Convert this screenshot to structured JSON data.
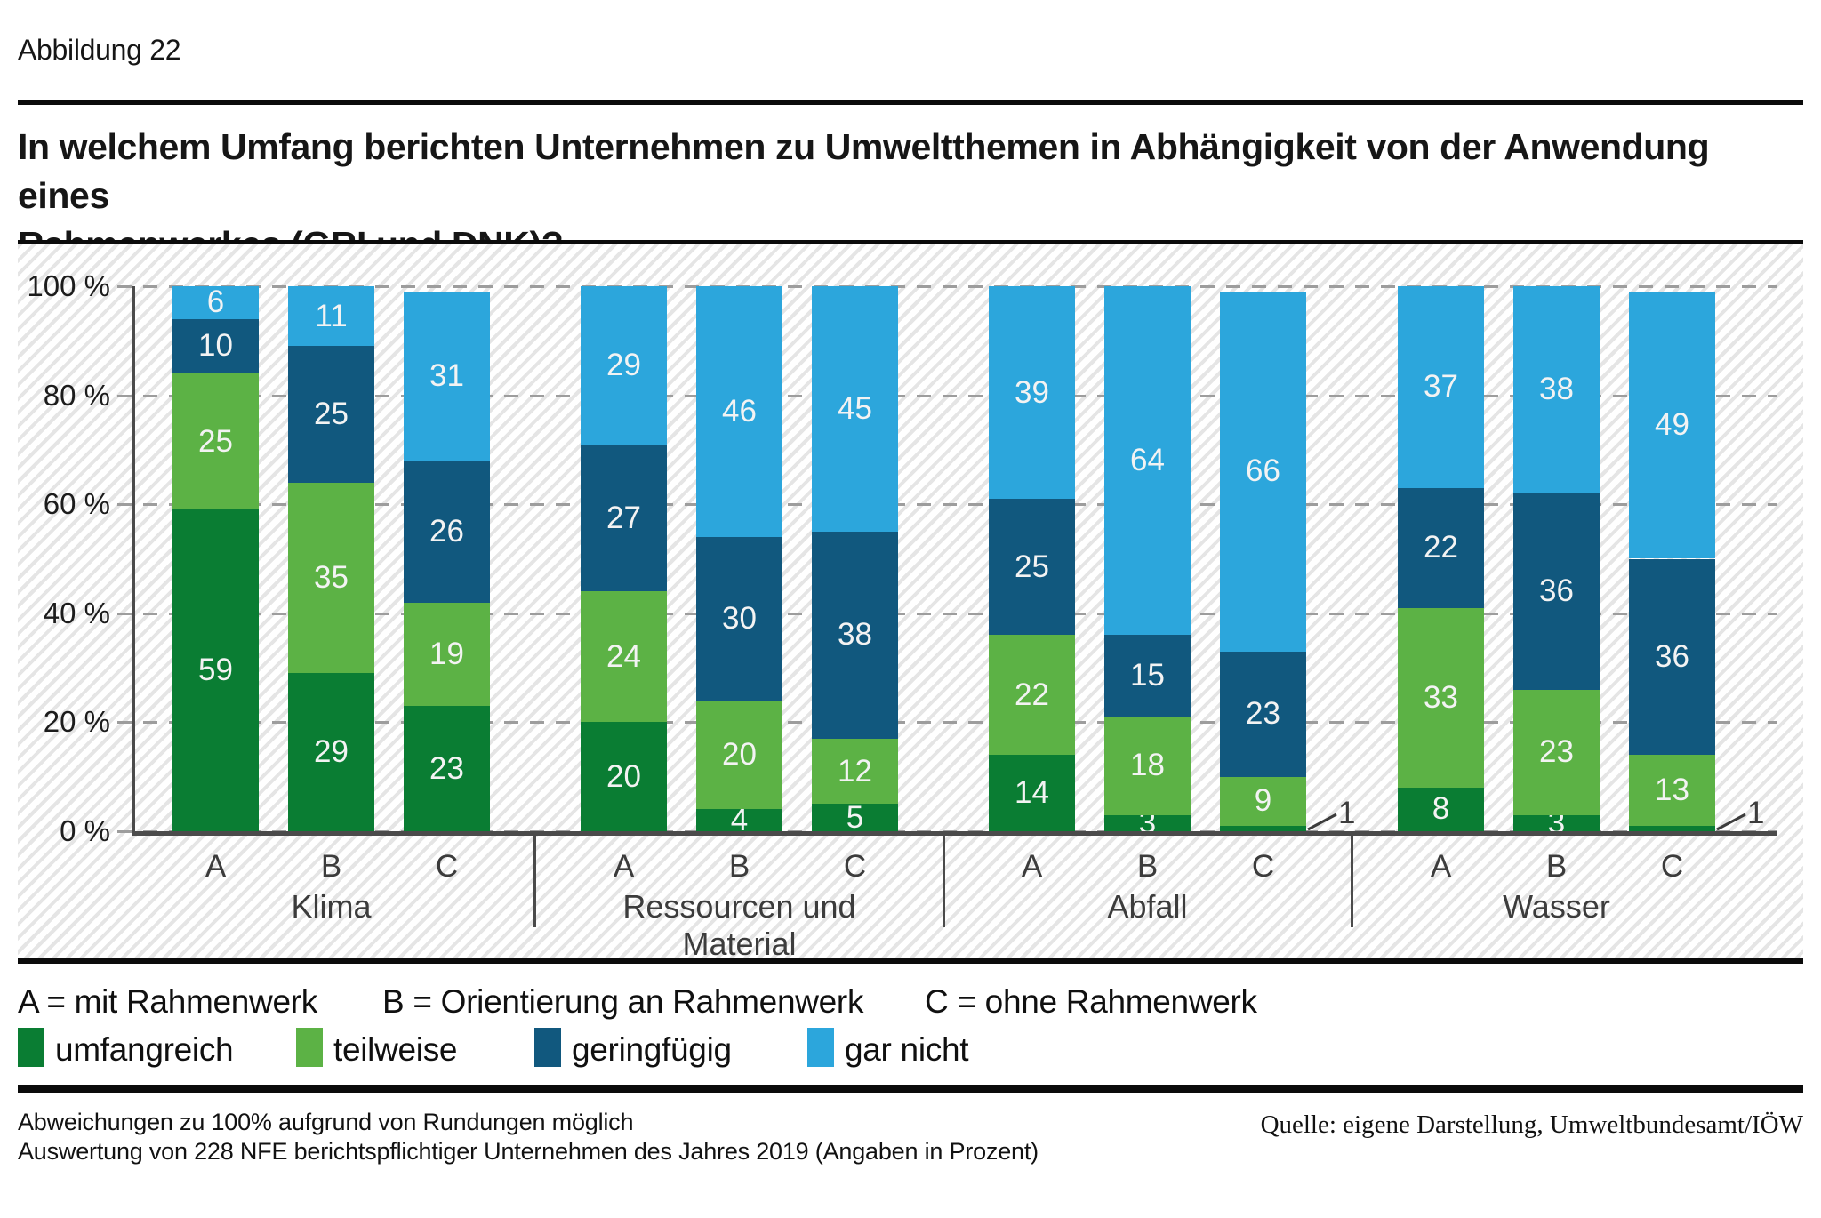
{
  "figure": {
    "label": "Abbildung 22",
    "title_lines": [
      "In welchem Umfang berichten Unternehmen zu Umweltthemen in Abhängigkeit von der Anwendung eines",
      "Rahmenwerkes (GRI und DNK)?"
    ]
  },
  "chart_data": {
    "type": "bar",
    "stacked": true,
    "unit": "percent",
    "title": "In welchem Umfang berichten Unternehmen zu Umweltthemen in Abhängigkeit von der Anwendung eines Rahmenwerkes (GRI und DNK)?",
    "ylim": [
      0,
      100
    ],
    "y_ticks": [
      "0 %",
      "20 %",
      "40 %",
      "60 %",
      "80 %",
      "100 %"
    ],
    "grid": "horizontal-dashed",
    "legend_position": "below",
    "series": [
      {
        "name": "umfangreich",
        "color": "#0a7d33"
      },
      {
        "name": "teilweise",
        "color": "#5cb245"
      },
      {
        "name": "geringfügig",
        "color": "#11587e"
      },
      {
        "name": "gar nicht",
        "color": "#2ca6dc"
      }
    ],
    "groups": [
      {
        "label": "Klima",
        "bars": [
          {
            "label": "A",
            "values": [
              59,
              25,
              10,
              6
            ]
          },
          {
            "label": "B",
            "values": [
              29,
              35,
              25,
              11
            ]
          },
          {
            "label": "C",
            "values": [
              23,
              19,
              26,
              31
            ]
          }
        ]
      },
      {
        "label": "Ressourcen und Material",
        "bars": [
          {
            "label": "A",
            "values": [
              20,
              24,
              27,
              29
            ]
          },
          {
            "label": "B",
            "values": [
              4,
              20,
              30,
              46
            ]
          },
          {
            "label": "C",
            "values": [
              5,
              12,
              38,
              45
            ]
          }
        ]
      },
      {
        "label": "Abfall",
        "bars": [
          {
            "label": "A",
            "values": [
              14,
              22,
              25,
              39
            ]
          },
          {
            "label": "B",
            "values": [
              3,
              18,
              15,
              64
            ]
          },
          {
            "label": "C",
            "values": [
              1,
              9,
              23,
              66
            ]
          }
        ]
      },
      {
        "label": "Wasser",
        "bars": [
          {
            "label": "A",
            "values": [
              8,
              33,
              22,
              37
            ]
          },
          {
            "label": "B",
            "values": [
              3,
              23,
              36,
              38
            ]
          },
          {
            "label": "C",
            "values": [
              1,
              13,
              36,
              49
            ]
          }
        ]
      }
    ]
  },
  "legend": {
    "abc": [
      "A = mit Rahmenwerk",
      "B = Orientierung an Rahmenwerk",
      "C = ohne Rahmenwerk"
    ]
  },
  "footer": {
    "note1": "Abweichungen zu 100% aufgrund von Rundungen möglich",
    "note2": "Auswertung von 228 NFE berichtspflichtiger Unternehmen des Jahres 2019 (Angaben in Prozent)",
    "source": "Quelle: eigene Darstellung, Umweltbundesamt/IÖW"
  }
}
